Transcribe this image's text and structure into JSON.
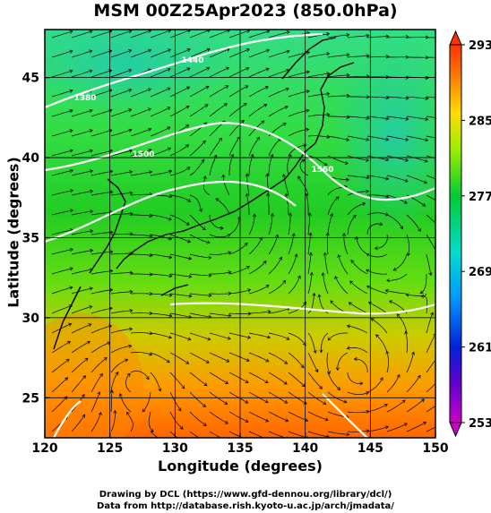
{
  "title": "MSM 00Z25Apr2023 (850.0hPa)",
  "xlabel": "Longitude (degrees)",
  "ylabel": "Latitude  (degrees)",
  "x_ticks": [
    "120",
    "125",
    "130",
    "135",
    "140",
    "145",
    "150"
  ],
  "y_ticks": [
    "25",
    "30",
    "35",
    "40",
    "45"
  ],
  "colorbar_ticks": [
    "253",
    "261",
    "269",
    "277",
    "285",
    "293"
  ],
  "contour_labels": [
    "1380",
    "1440",
    "1500",
    "1560"
  ],
  "credit_line1": "Drawing by DCL (https://www.gfd-dennou.org/library/dcl/)",
  "credit_line2": "Data from http://database.rish.kyoto-u.ac.jp/arch/jmadata/",
  "chart_data": {
    "type": "map",
    "field": "temperature shading with height contours and wind streamlines",
    "level": "850.0hPa",
    "xlim": [
      120,
      150
    ],
    "ylim": [
      22.5,
      48
    ],
    "color_scale": {
      "min": 253,
      "max": 293
    },
    "colors": {
      "cold": "#cc00cc",
      "cool": "#0044ff",
      "mild": "#00c8e0",
      "neutral": "#22dd22",
      "warm": "#99ee00",
      "hot": "#ff5500"
    }
  }
}
